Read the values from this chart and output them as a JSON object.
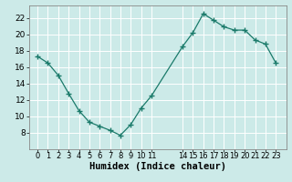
{
  "x": [
    0,
    1,
    2,
    3,
    4,
    5,
    6,
    7,
    8,
    9,
    10,
    11,
    14,
    15,
    16,
    17,
    18,
    19,
    20,
    21,
    22,
    23
  ],
  "y": [
    17.3,
    16.5,
    15.0,
    12.8,
    10.7,
    9.3,
    8.8,
    8.3,
    7.7,
    9.0,
    11.0,
    12.5,
    18.5,
    20.2,
    22.5,
    21.7,
    20.9,
    20.5,
    20.5,
    19.3,
    18.8,
    16.5
  ],
  "line_color": "#1a7a6a",
  "marker": "+",
  "marker_size": 4,
  "bg_color": "#cceae8",
  "grid_color": "#ffffff",
  "xlabel": "Humidex (Indice chaleur)",
  "ylim": [
    6,
    23.5
  ],
  "yticks": [
    8,
    10,
    12,
    14,
    16,
    18,
    20,
    22
  ],
  "xlim": [
    -0.8,
    24.0
  ],
  "xlabel_fontsize": 7.5,
  "tick_fontsize": 6.5
}
